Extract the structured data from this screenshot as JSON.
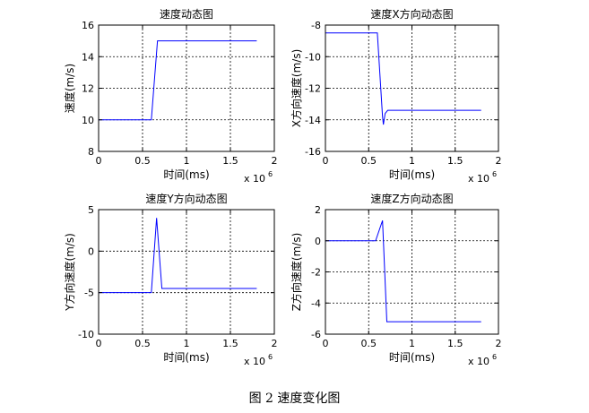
{
  "figure_caption": "图 2  速度变化图",
  "chart_data": [
    {
      "type": "line",
      "title": "速度动态图",
      "xlabel": "时间(ms)",
      "ylabel": "速度(m/s)",
      "x_multiplier_label": "x 10",
      "x_multiplier_exponent": "6",
      "xlim": [
        0,
        2
      ],
      "ylim": [
        8,
        16
      ],
      "xticks": [
        0,
        0.5,
        1,
        1.5,
        2
      ],
      "xtick_labels": [
        "0",
        "0.5",
        "1",
        "1.5",
        "2"
      ],
      "yticks": [
        8,
        10,
        12,
        14,
        16
      ],
      "ytick_labels": [
        "8",
        "10",
        "12",
        "14",
        "16"
      ],
      "grid": true,
      "series": [
        {
          "color": "#0000ff",
          "x": [
            0,
            0.6,
            0.67,
            1.8
          ],
          "y": [
            10,
            10,
            15,
            15
          ]
        }
      ]
    },
    {
      "type": "line",
      "title": "速度X方向动态图",
      "xlabel": "时间(ms)",
      "ylabel": "X方向速度(m/s)",
      "x_multiplier_label": "x 10",
      "x_multiplier_exponent": "6",
      "xlim": [
        0,
        2
      ],
      "ylim": [
        -16,
        -8
      ],
      "xticks": [
        0,
        0.5,
        1,
        1.5,
        2
      ],
      "xtick_labels": [
        "0",
        "0.5",
        "1",
        "1.5",
        "2"
      ],
      "yticks": [
        -16,
        -14,
        -12,
        -10,
        -8
      ],
      "ytick_labels": [
        "-16",
        "-14",
        "-12",
        "-10",
        "-8"
      ],
      "grid": true,
      "series": [
        {
          "color": "#0000ff",
          "x": [
            0,
            0.6,
            0.66,
            0.67,
            0.69,
            0.72,
            1.8
          ],
          "y": [
            -8.5,
            -8.5,
            -13.8,
            -14.3,
            -13.6,
            -13.4,
            -13.4
          ]
        }
      ]
    },
    {
      "type": "line",
      "title": "速度Y方向动态图",
      "xlabel": "时间(ms)",
      "ylabel": "Y方向速度(m/s)",
      "x_multiplier_label": "x 10",
      "x_multiplier_exponent": "6",
      "xlim": [
        0,
        2
      ],
      "ylim": [
        -10,
        5
      ],
      "xticks": [
        0,
        0.5,
        1,
        1.5,
        2
      ],
      "xtick_labels": [
        "0",
        "0.5",
        "1",
        "1.5",
        "2"
      ],
      "yticks": [
        -10,
        -5,
        0,
        5
      ],
      "ytick_labels": [
        "-10",
        "-5",
        "0",
        "5"
      ],
      "grid": true,
      "series": [
        {
          "color": "#0000ff",
          "x": [
            0,
            0.6,
            0.66,
            0.72,
            1.8
          ],
          "y": [
            -5,
            -5,
            4,
            -4.5,
            -4.5
          ]
        }
      ]
    },
    {
      "type": "line",
      "title": "速度Z方向动态图",
      "xlabel": "时间(ms)",
      "ylabel": "Z方向速度(m/s)",
      "x_multiplier_label": "x 10",
      "x_multiplier_exponent": "6",
      "xlim": [
        0,
        2
      ],
      "ylim": [
        -6,
        2
      ],
      "xticks": [
        0,
        0.5,
        1,
        1.5,
        2
      ],
      "xtick_labels": [
        "0",
        "0.5",
        "1",
        "1.5",
        "2"
      ],
      "yticks": [
        -6,
        -4,
        -2,
        0,
        2
      ],
      "ytick_labels": [
        "-6",
        "-4",
        "-2",
        "0",
        "2"
      ],
      "grid": true,
      "series": [
        {
          "color": "#0000ff",
          "x": [
            0,
            0.58,
            0.66,
            0.71,
            1.8
          ],
          "y": [
            0,
            0,
            1.3,
            -5.2,
            -5.2
          ]
        }
      ]
    }
  ]
}
